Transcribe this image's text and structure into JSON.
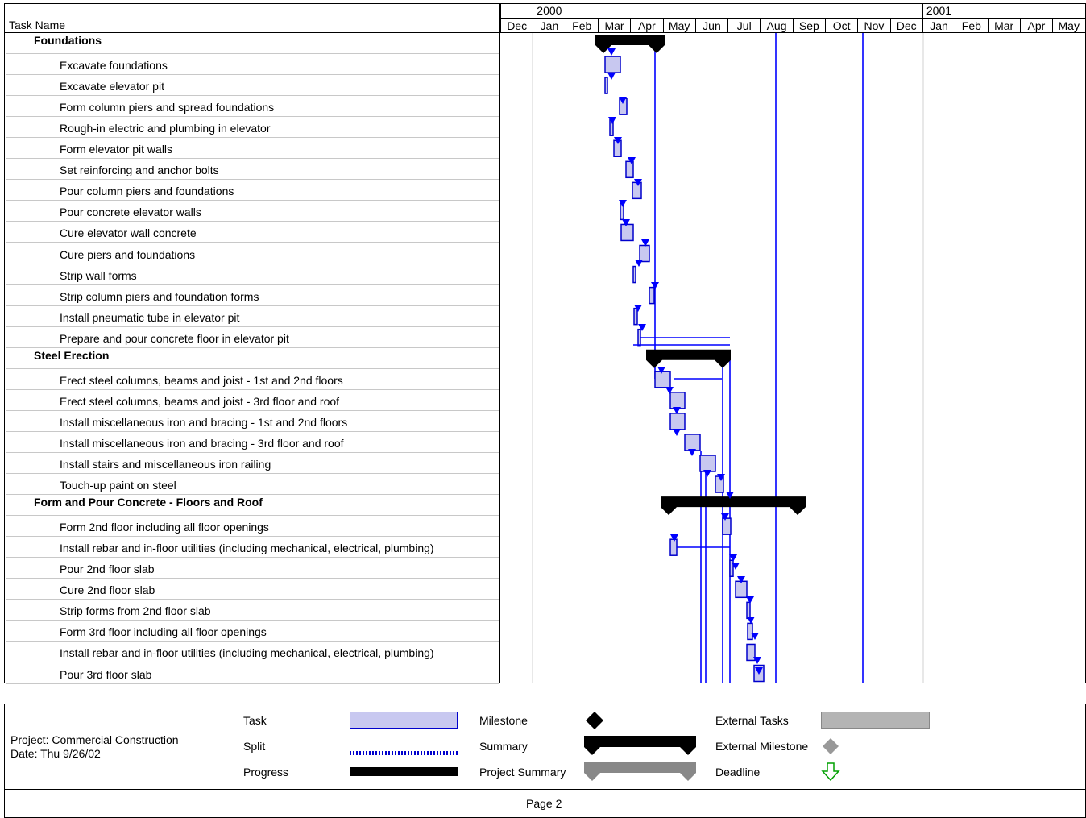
{
  "table": {
    "task_name_header": "Task Name",
    "tasks": [
      {
        "name": "Foundations",
        "summary": true
      },
      {
        "name": "Excavate foundations",
        "summary": false
      },
      {
        "name": "Excavate elevator pit",
        "summary": false
      },
      {
        "name": "Form column piers and spread foundations",
        "summary": false
      },
      {
        "name": "Rough-in electric and plumbing in elevator",
        "summary": false
      },
      {
        "name": "Form elevator pit walls",
        "summary": false
      },
      {
        "name": "Set reinforcing and anchor bolts",
        "summary": false
      },
      {
        "name": "Pour column piers and foundations",
        "summary": false
      },
      {
        "name": "Pour concrete elevator walls",
        "summary": false
      },
      {
        "name": "Cure elevator wall concrete",
        "summary": false
      },
      {
        "name": "Cure piers and foundations",
        "summary": false
      },
      {
        "name": "Strip wall forms",
        "summary": false
      },
      {
        "name": "Strip column piers and foundation forms",
        "summary": false
      },
      {
        "name": "Install pneumatic tube in elevator pit",
        "summary": false
      },
      {
        "name": "Prepare and pour concrete floor in elevator pit",
        "summary": false
      },
      {
        "name": "Steel Erection",
        "summary": true
      },
      {
        "name": "Erect steel columns, beams and joist - 1st and 2nd floors",
        "summary": false
      },
      {
        "name": "Erect steel columns, beams and joist - 3rd floor and roof",
        "summary": false
      },
      {
        "name": "Install miscellaneous iron and bracing - 1st and 2nd floors",
        "summary": false
      },
      {
        "name": "Install miscellaneous iron and bracing - 3rd floor and roof",
        "summary": false
      },
      {
        "name": "Install stairs and miscellaneous iron railing",
        "summary": false
      },
      {
        "name": "Touch-up paint on steel",
        "summary": false
      },
      {
        "name": "Form and Pour Concrete - Floors and Roof",
        "summary": true
      },
      {
        "name": "Form 2nd floor including all floor openings",
        "summary": false
      },
      {
        "name": "Install rebar and in-floor utilities (including mechanical, electrical, plumbing)",
        "summary": false
      },
      {
        "name": "Pour 2nd floor slab",
        "summary": false
      },
      {
        "name": "Cure 2nd floor slab",
        "summary": false
      },
      {
        "name": "Strip forms from 2nd floor slab",
        "summary": false
      },
      {
        "name": "Form 3rd floor including all floor openings",
        "summary": false
      },
      {
        "name": "Install rebar and in-floor utilities (including mechanical, electrical, plumbing)",
        "summary": false
      },
      {
        "name": "Pour 3rd floor slab",
        "summary": false
      }
    ]
  },
  "timescale": {
    "years": [
      "2000",
      "2001"
    ],
    "months": [
      "Dec",
      "Jan",
      "Feb",
      "Mar",
      "Apr",
      "May",
      "Jun",
      "Jul",
      "Aug",
      "Sep",
      "Oct",
      "Nov",
      "Dec",
      "Jan",
      "Feb",
      "Mar",
      "Apr",
      "May"
    ]
  },
  "footer": {
    "project_line": "Project: Commercial Construction",
    "date_line": "Date: Thu 9/26/02",
    "page": "Page 2"
  },
  "legend": {
    "task": "Task",
    "split": "Split",
    "progress": "Progress",
    "milestone": "Milestone",
    "summary": "Summary",
    "project_summary": "Project Summary",
    "external_tasks": "External Tasks",
    "external_milestone": "External Milestone",
    "deadline": "Deadline"
  },
  "colors": {
    "task_fill": "#c8c8f0",
    "task_border": "#0000cc",
    "link_line": "#0000ff",
    "summary_bar": "#000000",
    "external": "#b4b4b4",
    "deadline": "#00a000"
  }
}
